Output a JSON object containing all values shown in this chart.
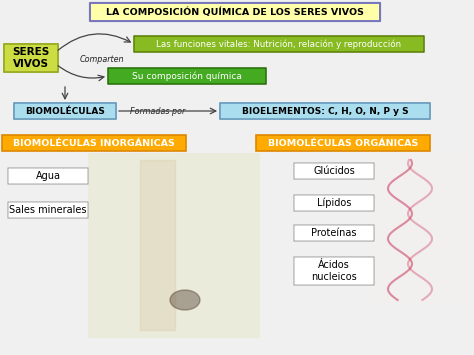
{
  "bg_color": "#f0f0f0",
  "title": "LA COMPOSICIÓN QUÍMICA DE LOS SERES VIVOS",
  "title_box_bg": "#ffffaa",
  "title_box_edge": "#7777bb",
  "seres_vivos_text": "SERES\nVIVOS",
  "seres_vivos_bg": "#ccdd44",
  "seres_vivos_edge": "#99aa22",
  "funciones_text": "Las funciones vitales: Nutrición, relación y reproducción",
  "funciones_bg": "#88bb22",
  "funciones_edge": "#557700",
  "comparten_text": "Comparten",
  "composicion_text": "Su composición química",
  "composicion_bg": "#44aa22",
  "composicion_edge": "#226600",
  "biomoleculas_text": "BIOMOLÉCULAS",
  "biomoleculas_bg": "#aaddee",
  "biomoleculas_edge": "#6699bb",
  "formadas_por_text": "Formadas por",
  "bioelementos_text": "BIOELEMENTOS: C, H, O, N, P y S",
  "bioelementos_bg": "#aaddee",
  "bioelementos_edge": "#6699bb",
  "inorganicas_text": "BIOMOLÉCULAS INORGÁNICAS",
  "inorganicas_bg": "#ffaa00",
  "inorganicas_edge": "#dd8800",
  "organicas_text": "BIOMOLÉCULAS ORGÁNICAS",
  "organicas_bg": "#ffaa00",
  "organicas_edge": "#dd8800",
  "items_left": [
    "Agua",
    "Sales minerales"
  ],
  "items_right": [
    "Glúcidos",
    "Lípidos",
    "Proteínas",
    "Ácidos\nnucleicos"
  ],
  "item_bg": "#ffffff",
  "item_edge": "#aaaaaa",
  "arrow_color": "#444444",
  "figw": 4.74,
  "figh": 3.55,
  "dpi": 100
}
